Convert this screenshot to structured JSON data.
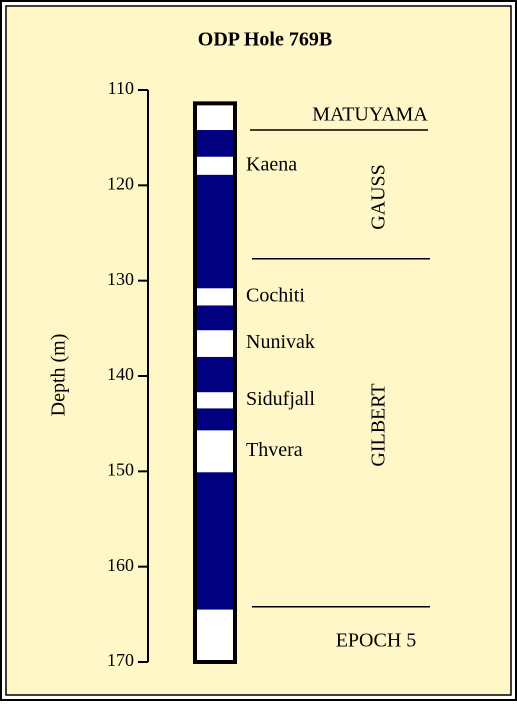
{
  "chart_data": {
    "type": "polarity-column",
    "title": "ODP Hole 769B",
    "y_label": "Depth (m)",
    "ylim": [
      110,
      170
    ],
    "yticks": [
      110,
      120,
      130,
      140,
      150,
      160,
      170
    ],
    "y_reversed": true,
    "column_range": [
      111.4,
      170
    ],
    "normal_color": "#000080",
    "reversed_color": "#ffffff",
    "normal_intervals": [
      {
        "top": 114.2,
        "bottom": 117.0
      },
      {
        "top": 118.9,
        "bottom": 130.8
      },
      {
        "top": 132.6,
        "bottom": 135.2
      },
      {
        "top": 138.0,
        "bottom": 141.7
      },
      {
        "top": 143.4,
        "bottom": 145.7
      },
      {
        "top": 150.1,
        "bottom": 164.5
      }
    ],
    "events": [
      "Kaena",
      "Cochiti",
      "Nunivak",
      "Sidufjall",
      "Thvera"
    ],
    "epoch_boundaries": [
      114.2,
      127.7,
      164.2
    ],
    "epochs": [
      "MATUYAMA",
      "GAUSS",
      "GILBERT",
      "EPOCH 5"
    ]
  }
}
